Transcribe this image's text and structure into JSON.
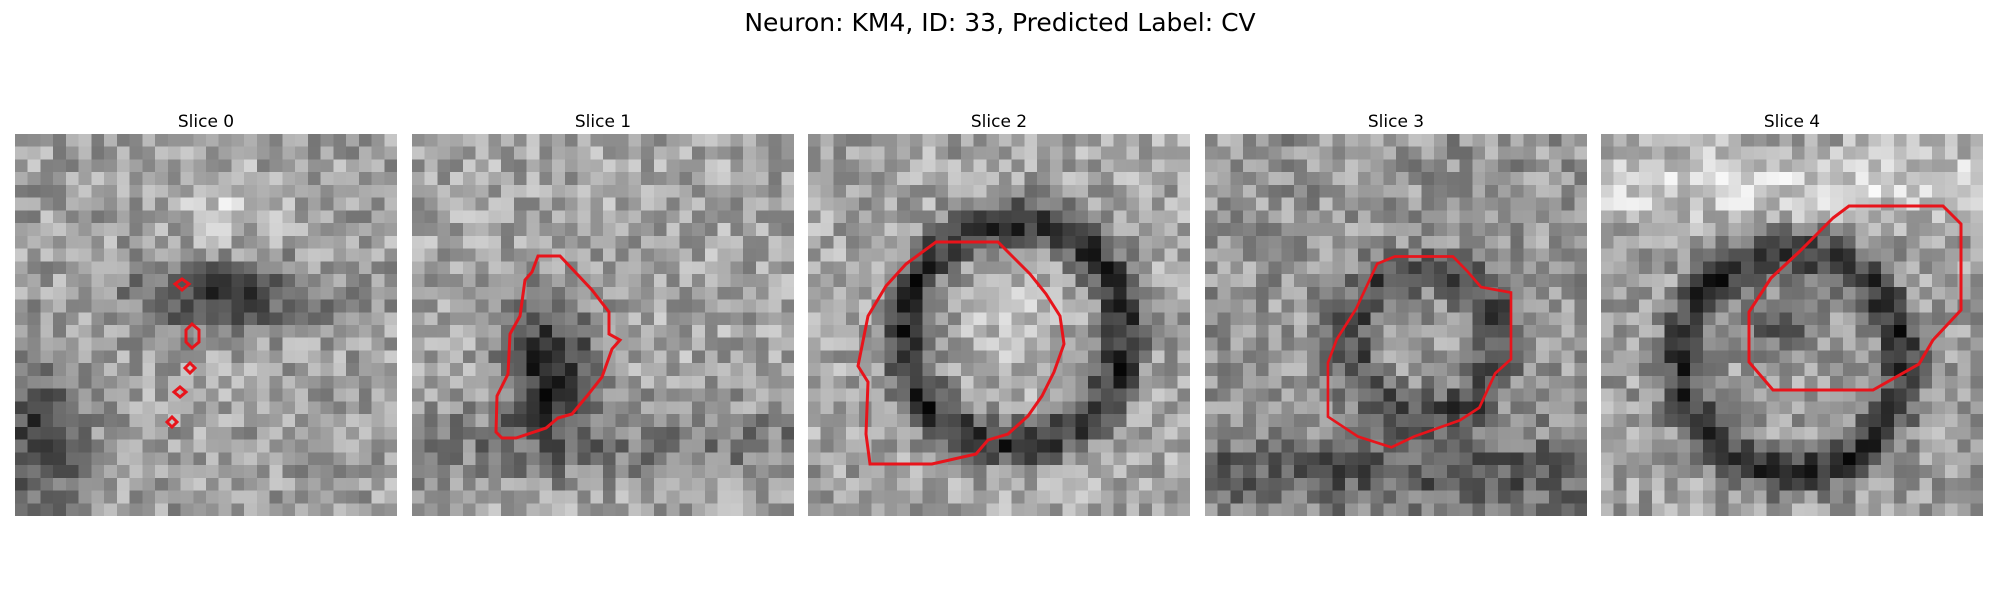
{
  "figure": {
    "title": "Neuron: KM4, ID: 33, Predicted Label: CV"
  },
  "panels": [
    {
      "title": "Slice 0",
      "pattern": "slice0",
      "contour": "dashes"
    },
    {
      "title": "Slice 1",
      "pattern": "slice1",
      "contour": "blob"
    },
    {
      "title": "Slice 2",
      "pattern": "slice2",
      "contour": "ring"
    },
    {
      "title": "Slice 3",
      "pattern": "slice3",
      "contour": "octagon"
    },
    {
      "title": "Slice 4",
      "pattern": "slice4",
      "contour": "upper"
    }
  ],
  "colormap": "gray",
  "contour_color": "#e8141b"
}
